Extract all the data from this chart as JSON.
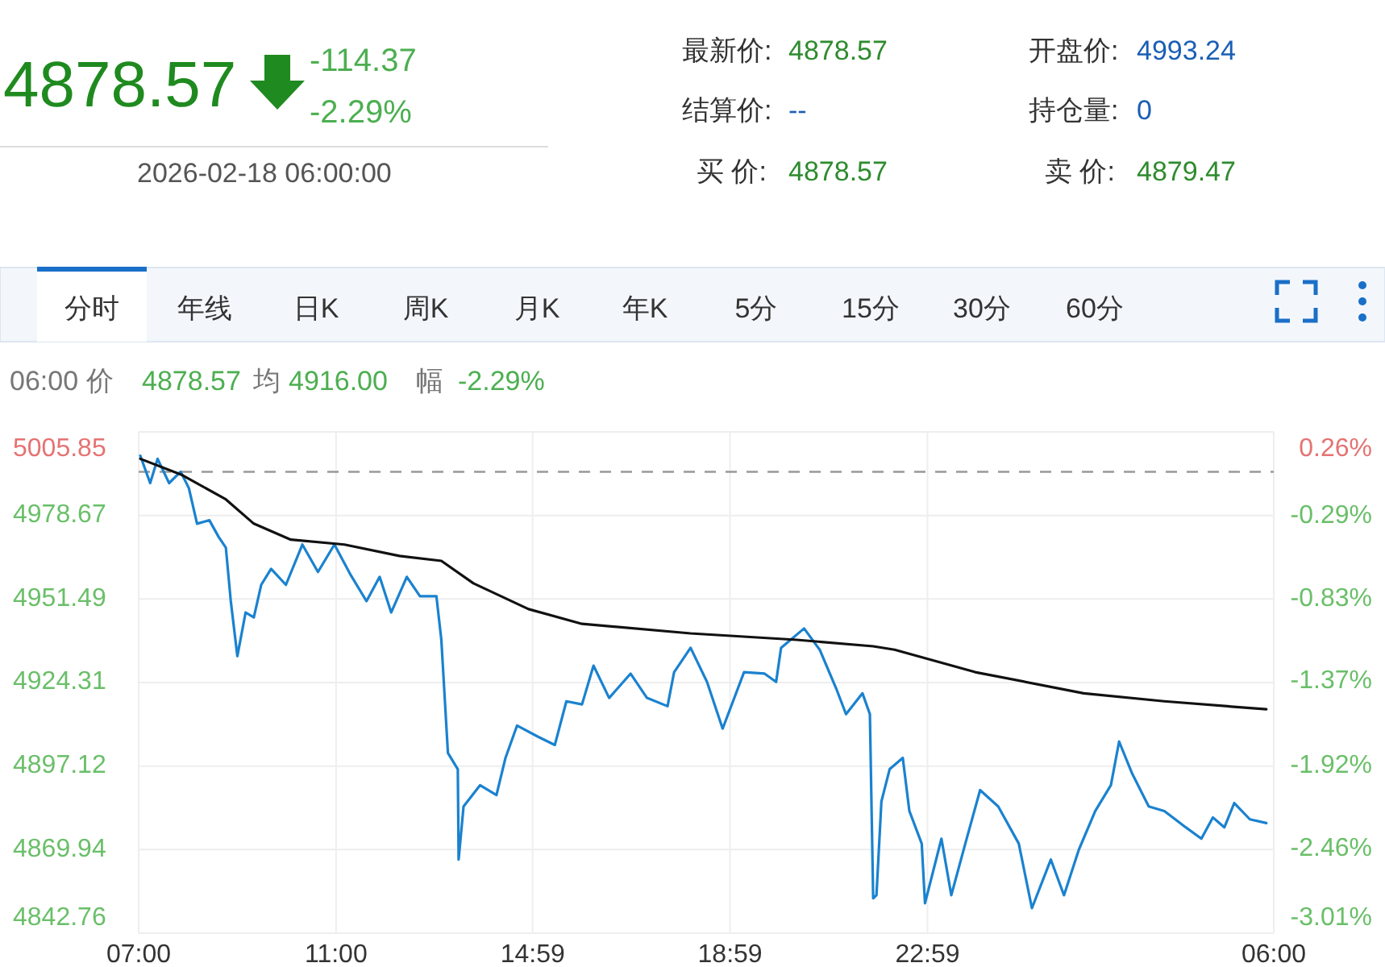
{
  "chart_data": {
    "type": "line",
    "xlim": [
      "2026-02-17T07:00",
      "2026-02-18T06:00"
    ],
    "xticks": [
      {
        "value": "2026-02-17T07:00",
        "label": "07:00"
      },
      {
        "value": "2026-02-17T11:00",
        "label": "11:00"
      },
      {
        "value": "2026-02-17T14:59",
        "label": "14:59"
      },
      {
        "value": "2026-02-17T18:59",
        "label": "18:59"
      },
      {
        "value": "2026-02-17T22:59",
        "label": "22:59"
      },
      {
        "value": "2026-02-18T06:00",
        "label": "06:00"
      }
    ],
    "ylim": [
      4842.76,
      5005.85
    ],
    "yticks": [
      4842.76,
      4869.94,
      4897.12,
      4924.31,
      4951.49,
      4978.67,
      5005.85
    ],
    "y2lim": [
      -3.01,
      0.26
    ],
    "y2ticks": [
      {
        "value": -3.01,
        "label": "-3.01%"
      },
      {
        "value": -2.46,
        "label": "-2.46%"
      },
      {
        "value": -1.92,
        "label": "-1.92%"
      },
      {
        "value": -1.37,
        "label": "-1.37%"
      },
      {
        "value": -0.83,
        "label": "-0.83%"
      },
      {
        "value": -0.29,
        "label": "-0.29%"
      },
      {
        "value": 0.26,
        "label": "0.26%"
      }
    ],
    "grid": true,
    "ref_lines": [
      {
        "axis": "y",
        "value": 4992.87,
        "color": "#999999",
        "line_style": "dashed"
      }
    ],
    "series": [
      {
        "color": "#1a82cf",
        "line_style": "solid",
        "x": [
          "2026-02-17T07:02",
          "2026-02-17T07:14",
          "2026-02-17T07:23",
          "2026-02-17T07:37",
          "2026-02-17T07:51",
          "2026-02-17T08:01",
          "2026-02-17T08:11",
          "2026-02-17T08:26",
          "2026-02-17T08:37",
          "2026-02-17T08:46",
          "2026-02-17T08:52",
          "2026-02-17T09:00",
          "2026-02-17T09:10",
          "2026-02-17T09:20",
          "2026-02-17T09:29",
          "2026-02-17T09:41",
          "2026-02-17T09:59",
          "2026-02-17T10:19",
          "2026-02-17T10:38",
          "2026-02-17T10:58",
          "2026-02-17T11:18",
          "2026-02-17T11:37",
          "2026-02-17T11:53",
          "2026-02-17T12:07",
          "2026-02-17T12:26",
          "2026-02-17T12:42",
          "2026-02-17T12:58",
          "2026-02-17T13:02",
          "2026-02-17T13:08",
          "2026-02-17T13:16",
          "2026-02-17T13:28",
          "2026-02-17T13:29",
          "2026-02-17T13:35",
          "2026-02-17T13:55",
          "2026-02-17T14:15",
          "2026-02-17T14:26",
          "2026-02-17T14:40",
          "2026-02-17T15:06",
          "2026-02-17T15:26",
          "2026-02-17T15:40",
          "2026-02-17T15:59",
          "2026-02-17T16:13",
          "2026-02-17T16:32",
          "2026-02-17T16:58",
          "2026-02-17T17:18",
          "2026-02-17T17:43",
          "2026-02-17T17:51",
          "2026-02-17T18:11",
          "2026-02-17T18:31",
          "2026-02-17T18:50",
          "2026-02-17T19:16",
          "2026-02-17T19:41",
          "2026-02-17T19:55",
          "2026-02-17T20:01",
          "2026-02-17T20:29",
          "2026-02-17T20:48",
          "2026-02-17T21:08",
          "2026-02-17T21:20",
          "2026-02-17T21:40",
          "2026-02-17T21:49",
          "2026-02-17T21:53",
          "2026-02-17T21:57",
          "2026-02-17T22:03",
          "2026-02-17T22:13",
          "2026-02-17T22:29",
          "2026-02-17T22:37",
          "2026-02-17T22:52",
          "2026-02-17T22:56",
          "2026-02-17T23:16",
          "2026-02-17T23:28",
          "2026-02-17T23:45",
          "2026-02-18T00:03",
          "2026-02-18T00:25",
          "2026-02-18T00:50",
          "2026-02-18T01:06",
          "2026-02-18T01:29",
          "2026-02-18T01:45",
          "2026-02-18T02:03",
          "2026-02-18T02:23",
          "2026-02-18T02:42",
          "2026-02-18T02:52",
          "2026-02-18T03:08",
          "2026-02-18T03:28",
          "2026-02-18T03:47",
          "2026-02-18T04:13",
          "2026-02-18T04:32",
          "2026-02-18T04:46",
          "2026-02-18T05:00",
          "2026-02-18T05:12",
          "2026-02-18T05:31",
          "2026-02-18T05:51"
        ],
        "values": [
          4998.1,
          4989.2,
          4997.1,
          4989.2,
          4992.9,
          4987.6,
          4976.0,
          4977.1,
          4971.8,
          4968.2,
          4950.8,
          4932.9,
          4947.1,
          4945.5,
          4956.1,
          4961.3,
          4956.1,
          4969.2,
          4960.3,
          4969.2,
          4959.2,
          4950.8,
          4958.7,
          4947.1,
          4958.7,
          4952.4,
          4952.4,
          4952.4,
          4938.2,
          4901.4,
          4896.1,
          4866.7,
          4884.0,
          4890.9,
          4887.7,
          4899.8,
          4910.3,
          4906.6,
          4904.0,
          4918.2,
          4917.2,
          4929.8,
          4919.3,
          4927.2,
          4919.3,
          4916.6,
          4927.7,
          4935.6,
          4924.5,
          4909.3,
          4927.7,
          4927.2,
          4924.5,
          4935.6,
          4941.9,
          4935.0,
          4922.4,
          4914.0,
          4920.8,
          4914.0,
          4854.1,
          4855.1,
          4885.6,
          4896.1,
          4899.8,
          4882.5,
          4871.9,
          4852.5,
          4873.5,
          4855.1,
          4871.9,
          4889.3,
          4884.0,
          4871.9,
          4850.9,
          4866.7,
          4855.1,
          4869.9,
          4882.5,
          4890.9,
          4905.1,
          4894.6,
          4884.0,
          4882.5,
          4877.2,
          4873.5,
          4880.4,
          4877.2,
          4885.1,
          4879.8,
          4878.6
        ]
      },
      {
        "color": "#111111",
        "line_style": "solid",
        "x": [
          "2026-02-17T07:02",
          "2026-02-17T07:53",
          "2026-02-17T08:46",
          "2026-02-17T09:20",
          "2026-02-17T10:05",
          "2026-02-17T11:10",
          "2026-02-17T12:17",
          "2026-02-17T13:08",
          "2026-02-17T13:47",
          "2026-02-17T14:54",
          "2026-02-17T15:59",
          "2026-02-17T18:11",
          "2026-02-17T20:20",
          "2026-02-17T21:53",
          "2026-02-17T22:19",
          "2026-02-17T23:57",
          "2026-02-18T02:09",
          "2026-02-18T03:47",
          "2026-02-18T05:51"
        ],
        "values": [
          4997.1,
          4991.8,
          4983.9,
          4976.0,
          4970.8,
          4969.2,
          4965.5,
          4963.9,
          4956.6,
          4948.2,
          4943.4,
          4940.3,
          4938.2,
          4936.1,
          4935.0,
          4927.7,
          4920.8,
          4918.2,
          4915.6
        ]
      }
    ],
    "annotations": [
      "4878.57",
      "-114.37",
      "-2.29%",
      "2026-02-18 06:00:00",
      "最新价:",
      "4878.57",
      "开盘价:",
      "4993.24",
      "结算价:",
      "--",
      "持仓量:",
      "0",
      "买 价:",
      "4878.57",
      "卖 价:",
      "4879.47",
      "分时",
      "年线",
      "日K",
      "周K",
      "月K",
      "年K",
      "5分",
      "15分",
      "30分",
      "60分",
      "06:00 价",
      "4878.57",
      "均",
      "4916.00",
      "幅",
      "-2.29%"
    ]
  }
}
